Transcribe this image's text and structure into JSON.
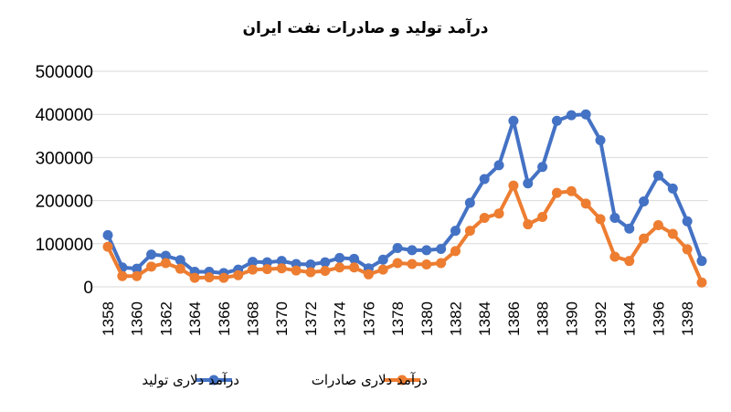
{
  "chart_data": {
    "type": "line",
    "title": "درآمد تولید و صادرات نفت ایران",
    "xlabel": "",
    "ylabel": "",
    "x": [
      1358,
      1359,
      1360,
      1361,
      1362,
      1363,
      1364,
      1365,
      1366,
      1367,
      1368,
      1369,
      1370,
      1371,
      1372,
      1373,
      1374,
      1375,
      1376,
      1377,
      1378,
      1379,
      1380,
      1381,
      1382,
      1383,
      1384,
      1385,
      1386,
      1387,
      1388,
      1389,
      1390,
      1391,
      1392,
      1393,
      1394,
      1395,
      1396,
      1397,
      1398,
      1399
    ],
    "x_tick_labels": [
      "1358",
      "1360",
      "1362",
      "1364",
      "1366",
      "1368",
      "1370",
      "1372",
      "1374",
      "1376",
      "1378",
      "1380",
      "1382",
      "1384",
      "1386",
      "1388",
      "1390",
      "1392",
      "1394",
      "1396",
      "1398"
    ],
    "y_tick_labels": [
      "0",
      "100000",
      "200000",
      "300000",
      "400000",
      "500000"
    ],
    "ylim": [
      0,
      500000
    ],
    "grid": true,
    "legend_position": "bottom",
    "series": [
      {
        "name": "درآمد  دلاری تولید",
        "color": "#4472C4",
        "values": [
          120000,
          45000,
          42000,
          75000,
          72000,
          62000,
          35000,
          35000,
          32000,
          40000,
          58000,
          57000,
          60000,
          53000,
          52000,
          57000,
          67000,
          65000,
          43000,
          63000,
          90000,
          85000,
          85000,
          88000,
          130000,
          195000,
          250000,
          282000,
          385000,
          240000,
          278000,
          385000,
          398000,
          400000,
          340000,
          160000,
          135000,
          198000,
          258000,
          228000,
          152000,
          60000
        ]
      },
      {
        "name": "درآمد دلاری صادرات",
        "color": "#ED7D31",
        "values": [
          93000,
          25000,
          25000,
          47000,
          55000,
          42000,
          21000,
          22000,
          21000,
          27000,
          40000,
          41000,
          43000,
          38000,
          34000,
          37000,
          45000,
          45000,
          29000,
          40000,
          55000,
          53000,
          52000,
          55000,
          83000,
          130000,
          160000,
          170000,
          235000,
          145000,
          162000,
          218000,
          222000,
          193000,
          157000,
          70000,
          60000,
          112000,
          143000,
          123000,
          87000,
          10000
        ]
      }
    ]
  }
}
